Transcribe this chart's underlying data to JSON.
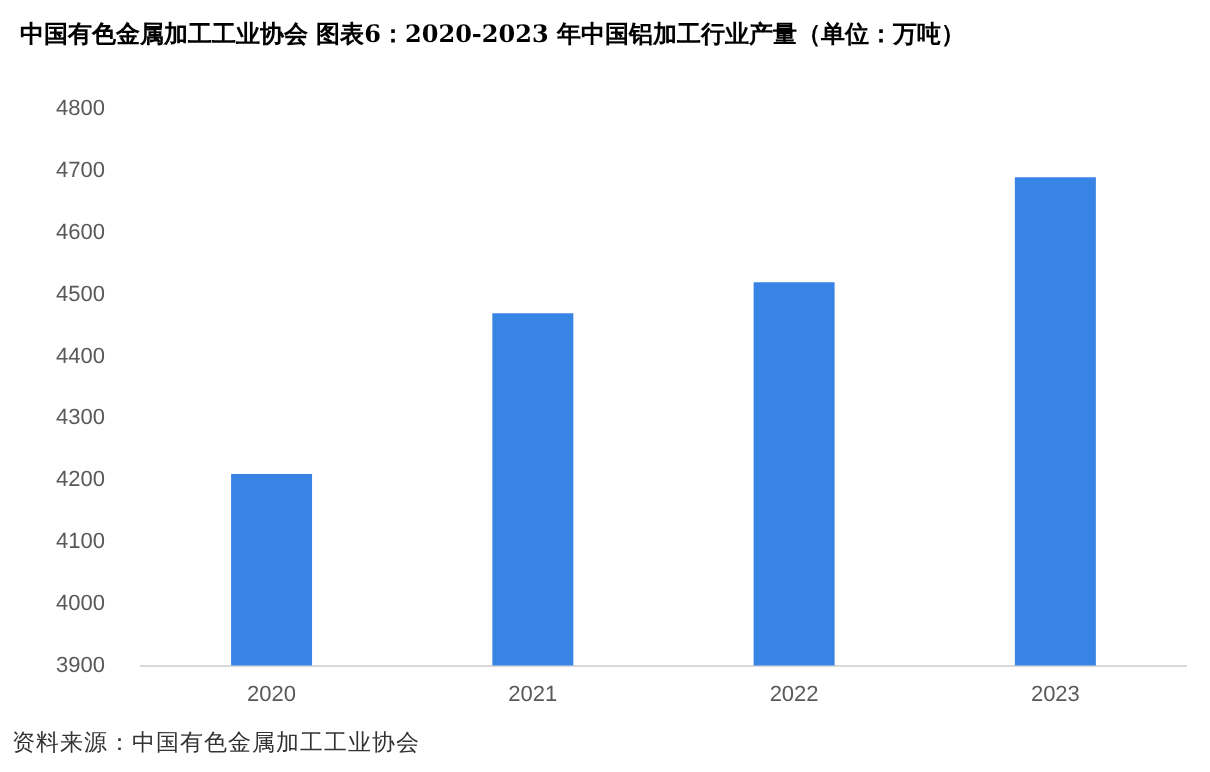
{
  "chart_data": {
    "type": "bar",
    "title": "中国有色金属加工工业协会 图表6：2020-2023 年中国铝加工行业产量（单位：万吨）",
    "categories": [
      "2020",
      "2021",
      "2022",
      "2023"
    ],
    "values": [
      4210,
      4470,
      4520,
      4690
    ],
    "color": "#3884e4",
    "ylim": [
      3900,
      4800
    ],
    "yticks": [
      3900,
      4000,
      4100,
      4200,
      4300,
      4400,
      4500,
      4600,
      4700,
      4800
    ],
    "grid": false,
    "legend": false,
    "annotations": [
      "资料来源：中国有色金属加工工业协会"
    ]
  }
}
